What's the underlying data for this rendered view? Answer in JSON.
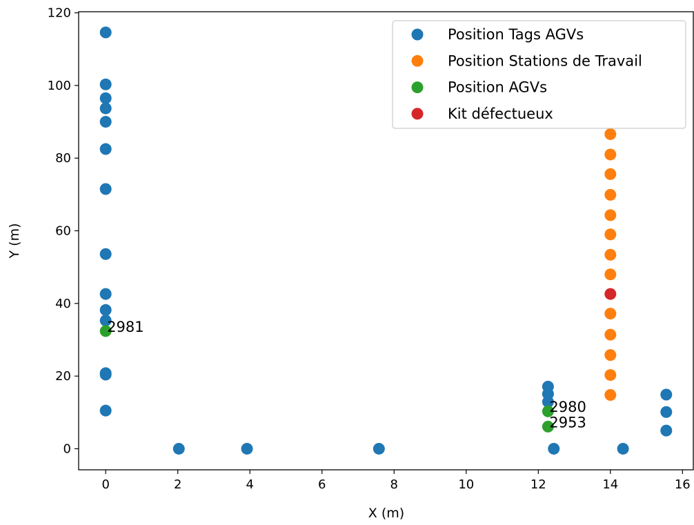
{
  "chart_data": {
    "type": "scatter",
    "title": "",
    "xlabel": "X (m)",
    "ylabel": "Y (m)",
    "xlim": [
      -0.75,
      16.3
    ],
    "ylim": [
      -5.8,
      120.3
    ],
    "xticks": [
      0,
      2,
      4,
      6,
      8,
      10,
      12,
      14,
      16
    ],
    "yticks": [
      0,
      20,
      40,
      60,
      80,
      100,
      120
    ],
    "grid": false,
    "legend_position": "top-right",
    "series": [
      {
        "name": "Position Tags AGVs",
        "color": "#1f77b4",
        "points": [
          [
            0,
            114.6
          ],
          [
            0,
            100.3
          ],
          [
            0,
            96.5
          ],
          [
            0,
            93.7
          ],
          [
            0,
            90.0
          ],
          [
            0,
            82.5
          ],
          [
            0,
            71.5
          ],
          [
            0,
            53.6
          ],
          [
            0,
            42.6
          ],
          [
            0,
            38.2
          ],
          [
            0,
            35.3
          ],
          [
            0,
            20.8
          ],
          [
            0,
            20.4
          ],
          [
            0,
            10.5
          ],
          [
            2.03,
            0
          ],
          [
            3.92,
            0
          ],
          [
            7.58,
            0
          ],
          [
            12.43,
            0
          ],
          [
            14.35,
            0
          ],
          [
            12.27,
            17.1
          ],
          [
            12.27,
            15.1
          ],
          [
            12.27,
            12.9
          ],
          [
            15.55,
            14.9
          ],
          [
            15.55,
            10.1
          ],
          [
            15.55,
            5.0
          ]
        ]
      },
      {
        "name": "Position Stations de Travail",
        "color": "#ff7f0e",
        "points": [
          [
            14,
            86.6
          ],
          [
            14,
            81.0
          ],
          [
            14,
            75.6
          ],
          [
            14,
            69.9
          ],
          [
            14,
            64.3
          ],
          [
            14,
            59.0
          ],
          [
            14,
            53.4
          ],
          [
            14,
            48.0
          ],
          [
            14,
            37.2
          ],
          [
            14,
            31.4
          ],
          [
            14,
            25.8
          ],
          [
            14,
            20.3
          ],
          [
            14,
            14.8
          ]
        ]
      },
      {
        "name": "Position AGVs",
        "color": "#2ca02c",
        "points": [
          [
            0,
            32.4
          ],
          [
            12.27,
            10.3
          ],
          [
            12.27,
            6.1
          ]
        ]
      },
      {
        "name": "Kit défectueux",
        "color": "#d62728",
        "points": [
          [
            14,
            42.6
          ]
        ]
      }
    ],
    "annotations": [
      {
        "text": "2981",
        "x": 0,
        "y": 32.4
      },
      {
        "text": "2980",
        "x": 12.27,
        "y": 10.3
      },
      {
        "text": "2953",
        "x": 12.27,
        "y": 6.1
      }
    ]
  }
}
